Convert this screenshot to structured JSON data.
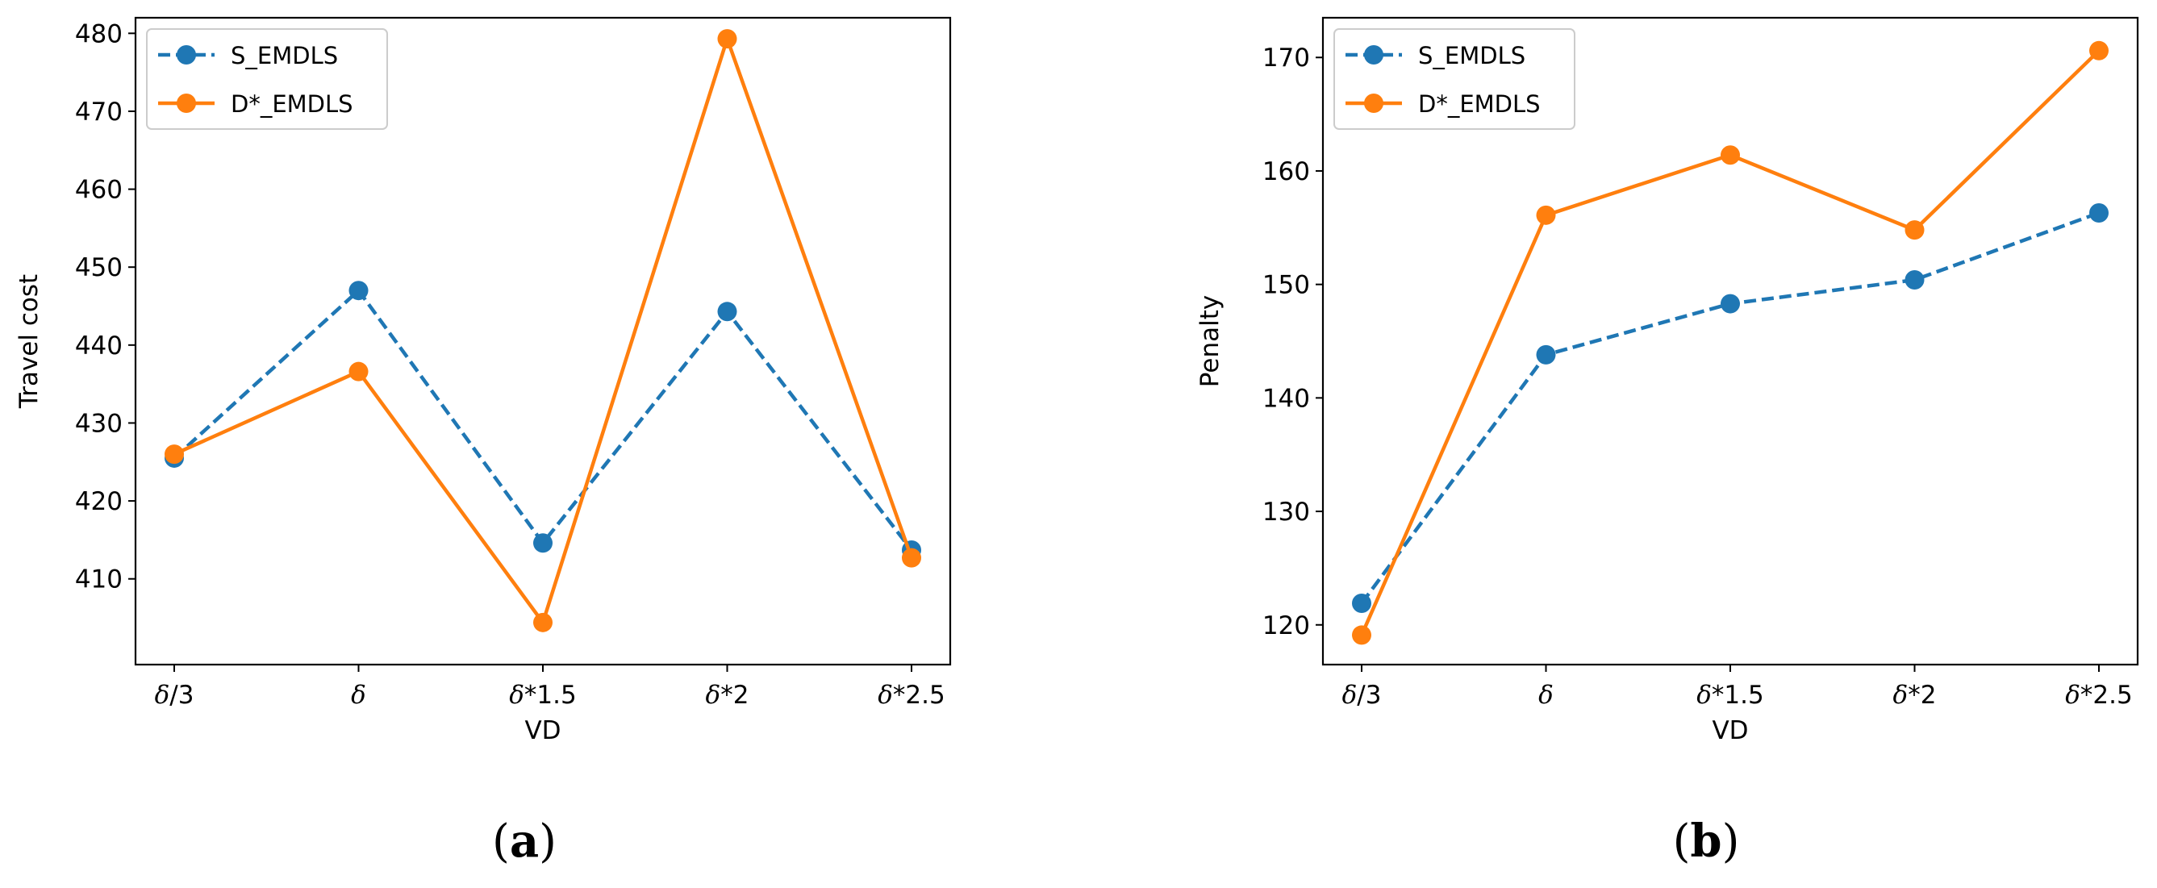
{
  "chart_data": [
    {
      "type": "line",
      "panel_label": "a",
      "categories": [
        "δ/3",
        "δ",
        "δ*1.5",
        "δ*2",
        "δ*2.5"
      ],
      "xlabel": "VD",
      "ylabel": "Travel cost",
      "ylim": [
        399,
        482
      ],
      "yticks": [
        410,
        420,
        430,
        440,
        450,
        460,
        470,
        480
      ],
      "grid": false,
      "legend_position": "top-left",
      "series": [
        {
          "name": "S_EMDLS",
          "style": "dashed",
          "color": "#1f77b4",
          "values": [
            425.5,
            447.0,
            414.6,
            444.3,
            413.7
          ]
        },
        {
          "name": "D*_EMDLS",
          "style": "solid",
          "color": "#ff7f0e",
          "values": [
            426.0,
            436.6,
            404.4,
            479.3,
            412.7
          ]
        }
      ]
    },
    {
      "type": "line",
      "panel_label": "b",
      "categories": [
        "δ/3",
        "δ",
        "δ*1.5",
        "δ*2",
        "δ*2.5"
      ],
      "xlabel": "VD",
      "ylabel": "Penalty",
      "ylim": [
        116.5,
        173.5
      ],
      "yticks": [
        120,
        130,
        140,
        150,
        160,
        170
      ],
      "grid": false,
      "legend_position": "top-left",
      "series": [
        {
          "name": "S_EMDLS",
          "style": "dashed",
          "color": "#1f77b4",
          "values": [
            121.9,
            143.8,
            148.3,
            150.4,
            156.3
          ]
        },
        {
          "name": "D*_EMDLS",
          "style": "solid",
          "color": "#ff7f0e",
          "values": [
            119.1,
            156.1,
            161.4,
            154.8,
            170.6
          ]
        }
      ]
    }
  ]
}
